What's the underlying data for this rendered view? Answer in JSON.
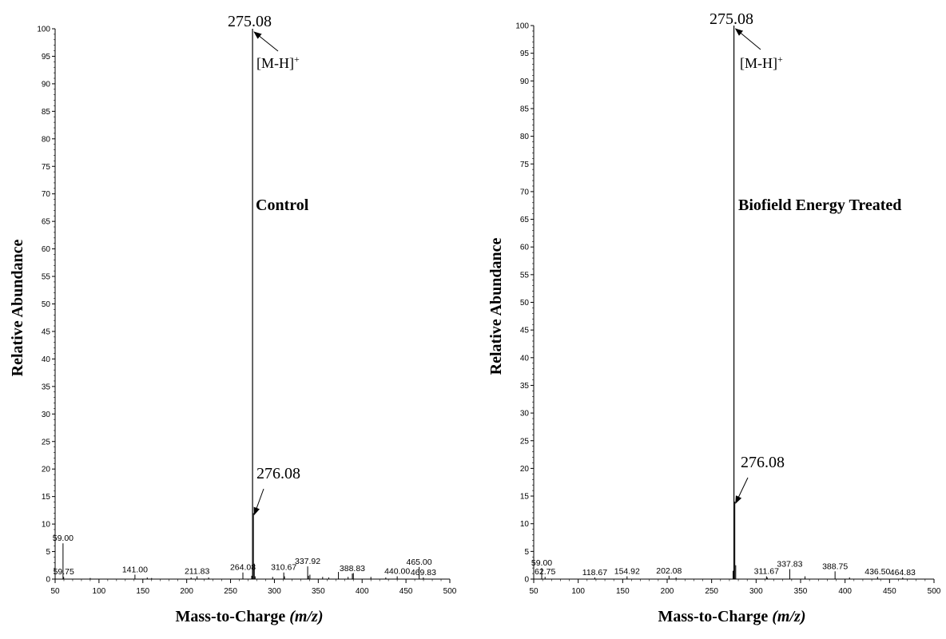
{
  "chart_data": [
    {
      "type": "bar",
      "panel_label": "Control",
      "xlabel": "Mass-to-Charge",
      "xlabel_unit": "(m/z)",
      "ylabel": "Relative Abundance",
      "xlim": [
        50,
        500
      ],
      "ylim": [
        0,
        100
      ],
      "xticks": [
        50,
        100,
        150,
        200,
        250,
        300,
        350,
        400,
        450,
        500
      ],
      "yticks": [
        0,
        5,
        10,
        15,
        20,
        25,
        30,
        35,
        40,
        45,
        50,
        55,
        60,
        65,
        70,
        75,
        80,
        85,
        90,
        95,
        100
      ],
      "annotations": [
        {
          "text": "275.08",
          "x": 275.08,
          "y": 100,
          "arrow": true
        },
        {
          "text": "[M-H]",
          "superscript": "+",
          "x": 275.08,
          "y": 100
        },
        {
          "text": "276.08",
          "x": 276.08,
          "y": 12,
          "arrow": true
        }
      ],
      "peak_labels": [
        {
          "text": "59.00",
          "x": 59.0,
          "y": 6.5
        },
        {
          "text": "59.75",
          "x": 59.75,
          "y": 0.4
        },
        {
          "text": "141.00",
          "x": 141.0,
          "y": 0.8
        },
        {
          "text": "211.83",
          "x": 211.83,
          "y": 0.5
        },
        {
          "text": "264.08",
          "x": 264.08,
          "y": 1.2
        },
        {
          "text": "310.67",
          "x": 310.67,
          "y": 1.2
        },
        {
          "text": "337.92",
          "x": 337.92,
          "y": 2.3
        },
        {
          "text": "388.83",
          "x": 388.83,
          "y": 1.0
        },
        {
          "text": "440.00",
          "x": 440.0,
          "y": 0.5
        },
        {
          "text": "465.00",
          "x": 465.0,
          "y": 2.2
        },
        {
          "text": "469.83",
          "x": 469.83,
          "y": 0.3
        }
      ],
      "peaks": [
        [
          59.0,
          6.5
        ],
        [
          59.75,
          0.4
        ],
        [
          90,
          0.2
        ],
        [
          141.0,
          0.8
        ],
        [
          155,
          0.3
        ],
        [
          160,
          0.2
        ],
        [
          205,
          0.3
        ],
        [
          211.83,
          0.5
        ],
        [
          225,
          0.3
        ],
        [
          264.08,
          1.2
        ],
        [
          274.08,
          0.6
        ],
        [
          275.08,
          100
        ],
        [
          276.08,
          12
        ],
        [
          277.08,
          2.8
        ],
        [
          278.0,
          0.5
        ],
        [
          298,
          0.4
        ],
        [
          310.67,
          1.2
        ],
        [
          311.5,
          0.5
        ],
        [
          337.92,
          2.3
        ],
        [
          338.9,
          0.6
        ],
        [
          340.5,
          0.8
        ],
        [
          355,
          0.4
        ],
        [
          362,
          0.3
        ],
        [
          373,
          1.3
        ],
        [
          384,
          0.4
        ],
        [
          388.83,
          1.0
        ],
        [
          390,
          1.1
        ],
        [
          410,
          0.4
        ],
        [
          427,
          0.3
        ],
        [
          440.0,
          0.5
        ],
        [
          465.0,
          2.2
        ],
        [
          469.83,
          0.3
        ]
      ]
    },
    {
      "type": "bar",
      "panel_label": "Biofield Energy Treated",
      "xlabel": "Mass-to-Charge",
      "xlabel_unit": "(m/z)",
      "ylabel": "Relative Abundance",
      "xlim": [
        50,
        500
      ],
      "ylim": [
        0,
        100
      ],
      "xticks": [
        50,
        100,
        150,
        200,
        250,
        300,
        350,
        400,
        450,
        500
      ],
      "yticks": [
        0,
        5,
        10,
        15,
        20,
        25,
        30,
        35,
        40,
        45,
        50,
        55,
        60,
        65,
        70,
        75,
        80,
        85,
        90,
        95,
        100
      ],
      "annotations": [
        {
          "text": "275.08",
          "x": 275.08,
          "y": 100,
          "arrow": true
        },
        {
          "text": "[M-H]",
          "superscript": "+",
          "x": 275.08,
          "y": 100
        },
        {
          "text": "276.08",
          "x": 276.08,
          "y": 14,
          "arrow": true
        }
      ],
      "peak_labels": [
        {
          "text": "59.00",
          "x": 59.0,
          "y": 2.0
        },
        {
          "text": "62.75",
          "x": 62.75,
          "y": 0.4
        },
        {
          "text": "118.67",
          "x": 118.67,
          "y": 0.3
        },
        {
          "text": "154.92",
          "x": 154.92,
          "y": 0.5
        },
        {
          "text": "202.08",
          "x": 202.08,
          "y": 0.6
        },
        {
          "text": "311.67",
          "x": 311.67,
          "y": 0.5
        },
        {
          "text": "337.83",
          "x": 337.83,
          "y": 1.8
        },
        {
          "text": "388.75",
          "x": 388.75,
          "y": 1.4
        },
        {
          "text": "436.50",
          "x": 436.5,
          "y": 0.4
        },
        {
          "text": "464.83",
          "x": 464.83,
          "y": 0.3
        }
      ],
      "peaks": [
        [
          59.0,
          2.0
        ],
        [
          62.75,
          0.4
        ],
        [
          118.67,
          0.3
        ],
        [
          154.92,
          0.5
        ],
        [
          202.08,
          0.6
        ],
        [
          210,
          0.3
        ],
        [
          274.08,
          1.5
        ],
        [
          275.08,
          100
        ],
        [
          276.08,
          14
        ],
        [
          277.08,
          2.5
        ],
        [
          311.67,
          0.5
        ],
        [
          312.5,
          0.3
        ],
        [
          337.83,
          1.8
        ],
        [
          355,
          0.5
        ],
        [
          388.75,
          1.4
        ],
        [
          405,
          0.3
        ],
        [
          436.5,
          0.4
        ],
        [
          464.83,
          0.3
        ]
      ]
    }
  ]
}
